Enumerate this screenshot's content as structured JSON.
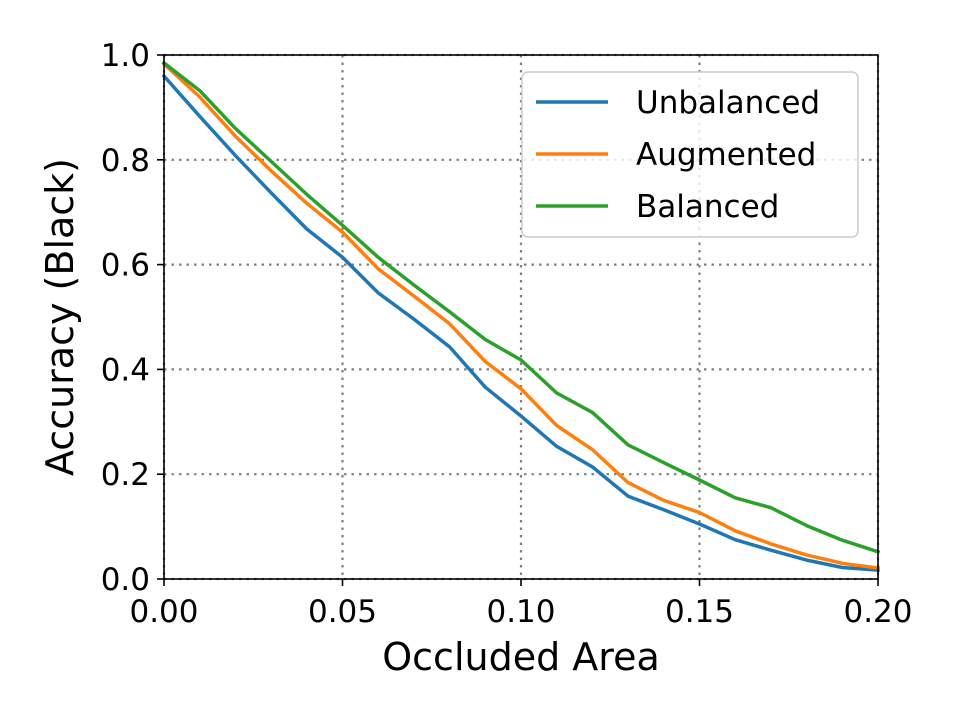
{
  "chart_data": {
    "type": "line",
    "xlabel": "Occluded Area",
    "ylabel": "Accuracy (Black)",
    "xlim": [
      0.0,
      0.2
    ],
    "ylim": [
      0.0,
      1.0
    ],
    "xticks": [
      0.0,
      0.05,
      0.1,
      0.15,
      0.2
    ],
    "xtick_labels": [
      "0.00",
      "0.05",
      "0.10",
      "0.15",
      "0.20"
    ],
    "yticks": [
      0.0,
      0.2,
      0.4,
      0.6,
      0.8,
      1.0
    ],
    "ytick_labels": [
      "0.0",
      "0.2",
      "0.4",
      "0.6",
      "0.8",
      "1.0"
    ],
    "grid": true,
    "legend_position": "top-right",
    "x": [
      0.0,
      0.01,
      0.02,
      0.03,
      0.04,
      0.05,
      0.06,
      0.07,
      0.08,
      0.09,
      0.1,
      0.11,
      0.12,
      0.13,
      0.14,
      0.15,
      0.16,
      0.17,
      0.18,
      0.19,
      0.2
    ],
    "series": [
      {
        "name": "Unbalanced",
        "color": "#1f77b4",
        "values": [
          0.96,
          0.883,
          0.808,
          0.737,
          0.668,
          0.614,
          0.546,
          0.496,
          0.443,
          0.366,
          0.311,
          0.253,
          0.214,
          0.158,
          0.132,
          0.105,
          0.075,
          0.055,
          0.036,
          0.022,
          0.017
        ]
      },
      {
        "name": "Augmented",
        "color": "#ff7f0e",
        "values": [
          0.983,
          0.92,
          0.845,
          0.779,
          0.717,
          0.662,
          0.592,
          0.54,
          0.487,
          0.415,
          0.363,
          0.293,
          0.247,
          0.184,
          0.15,
          0.127,
          0.092,
          0.067,
          0.046,
          0.03,
          0.021
        ]
      },
      {
        "name": "Balanced",
        "color": "#2ca02c",
        "values": [
          0.985,
          0.932,
          0.86,
          0.797,
          0.734,
          0.675,
          0.614,
          0.561,
          0.51,
          0.457,
          0.418,
          0.355,
          0.318,
          0.256,
          0.222,
          0.189,
          0.155,
          0.136,
          0.102,
          0.074,
          0.052
        ]
      }
    ]
  }
}
